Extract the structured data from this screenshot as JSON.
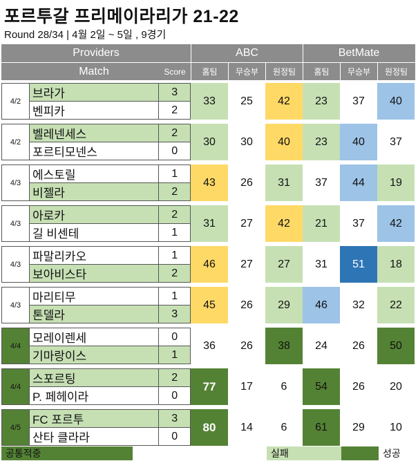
{
  "title": "포르투갈 프리메이라리가 21-22",
  "subtitle": "Round 28/34 | 4월 2일 ~ 5일 , 9경기",
  "header": {
    "providers": "Providers",
    "abc": "ABC",
    "betmate": "BetMate",
    "match": "Match",
    "score": "Score",
    "cols": [
      "홈팀",
      "무승부",
      "원정팀",
      "홈팀",
      "무승부",
      "원정팀"
    ]
  },
  "colors": {
    "header_gray": "#8c8c8c",
    "light_green": "#c6e0b4",
    "dark_green": "#548235",
    "yellow": "#ffd966",
    "light_blue": "#9dc3e6",
    "dark_blue": "#2e75b6",
    "white": "#ffffff"
  },
  "matches": [
    {
      "date": "4/2",
      "date_bg": "white",
      "home": {
        "name": "브라가",
        "score": "3",
        "bg": "light_green"
      },
      "away": {
        "name": "벤피카",
        "score": "2",
        "bg": "white"
      },
      "preds": [
        {
          "v": "33",
          "bg": "light_green"
        },
        {
          "v": "25",
          "bg": "white"
        },
        {
          "v": "42",
          "bg": "yellow"
        },
        {
          "v": "23",
          "bg": "light_green"
        },
        {
          "v": "37",
          "bg": "white"
        },
        {
          "v": "40",
          "bg": "light_blue"
        }
      ]
    },
    {
      "date": "4/2",
      "date_bg": "white",
      "home": {
        "name": "벨레넨세스",
        "score": "2",
        "bg": "light_green"
      },
      "away": {
        "name": "포르티모넨스",
        "score": "0",
        "bg": "white"
      },
      "preds": [
        {
          "v": "30",
          "bg": "light_green"
        },
        {
          "v": "30",
          "bg": "white"
        },
        {
          "v": "40",
          "bg": "yellow"
        },
        {
          "v": "23",
          "bg": "light_green"
        },
        {
          "v": "40",
          "bg": "light_blue"
        },
        {
          "v": "37",
          "bg": "white"
        }
      ]
    },
    {
      "date": "4/3",
      "date_bg": "white",
      "home": {
        "name": "에스토릴",
        "score": "1",
        "bg": "white"
      },
      "away": {
        "name": "비젤라",
        "score": "2",
        "bg": "light_green"
      },
      "preds": [
        {
          "v": "43",
          "bg": "yellow"
        },
        {
          "v": "26",
          "bg": "white"
        },
        {
          "v": "31",
          "bg": "light_green"
        },
        {
          "v": "37",
          "bg": "white"
        },
        {
          "v": "44",
          "bg": "light_blue"
        },
        {
          "v": "19",
          "bg": "light_green"
        }
      ]
    },
    {
      "date": "4/3",
      "date_bg": "white",
      "home": {
        "name": "아로카",
        "score": "2",
        "bg": "light_green"
      },
      "away": {
        "name": "길 비센테",
        "score": "1",
        "bg": "white"
      },
      "preds": [
        {
          "v": "31",
          "bg": "light_green"
        },
        {
          "v": "27",
          "bg": "white"
        },
        {
          "v": "42",
          "bg": "yellow"
        },
        {
          "v": "21",
          "bg": "light_green"
        },
        {
          "v": "37",
          "bg": "white"
        },
        {
          "v": "42",
          "bg": "light_blue"
        }
      ]
    },
    {
      "date": "4/3",
      "date_bg": "white",
      "home": {
        "name": "파말리카오",
        "score": "1",
        "bg": "white"
      },
      "away": {
        "name": "보아비스타",
        "score": "2",
        "bg": "light_green"
      },
      "preds": [
        {
          "v": "46",
          "bg": "yellow"
        },
        {
          "v": "27",
          "bg": "white"
        },
        {
          "v": "27",
          "bg": "light_green"
        },
        {
          "v": "31",
          "bg": "white"
        },
        {
          "v": "51",
          "bg": "dark_blue"
        },
        {
          "v": "18",
          "bg": "light_green"
        }
      ]
    },
    {
      "date": "4/3",
      "date_bg": "white",
      "home": {
        "name": "마리티무",
        "score": "1",
        "bg": "white"
      },
      "away": {
        "name": "톤델라",
        "score": "3",
        "bg": "light_green"
      },
      "preds": [
        {
          "v": "45",
          "bg": "yellow"
        },
        {
          "v": "26",
          "bg": "white"
        },
        {
          "v": "29",
          "bg": "light_green"
        },
        {
          "v": "46",
          "bg": "light_blue"
        },
        {
          "v": "32",
          "bg": "white"
        },
        {
          "v": "22",
          "bg": "light_green"
        }
      ]
    },
    {
      "date": "4/4",
      "date_bg": "dark_green",
      "home": {
        "name": "모레이렌세",
        "score": "0",
        "bg": "white"
      },
      "away": {
        "name": "기마랑이스",
        "score": "1",
        "bg": "light_green"
      },
      "preds": [
        {
          "v": "36",
          "bg": "white"
        },
        {
          "v": "26",
          "bg": "white"
        },
        {
          "v": "38",
          "bg": "dark_green"
        },
        {
          "v": "24",
          "bg": "white"
        },
        {
          "v": "26",
          "bg": "white"
        },
        {
          "v": "50",
          "bg": "dark_green"
        }
      ]
    },
    {
      "date": "4/4",
      "date_bg": "dark_green",
      "home": {
        "name": "스포르팅",
        "score": "2",
        "bg": "light_green"
      },
      "away": {
        "name": "P. 페헤이라",
        "score": "0",
        "bg": "white"
      },
      "preds": [
        {
          "v": "77",
          "bg": "dark_green",
          "bold": true
        },
        {
          "v": "17",
          "bg": "white"
        },
        {
          "v": "6",
          "bg": "white"
        },
        {
          "v": "54",
          "bg": "dark_green"
        },
        {
          "v": "26",
          "bg": "white"
        },
        {
          "v": "20",
          "bg": "white"
        }
      ]
    },
    {
      "date": "4/5",
      "date_bg": "dark_green",
      "home": {
        "name": "FC 포르투",
        "score": "3",
        "bg": "light_green"
      },
      "away": {
        "name": "산타 클라라",
        "score": "0",
        "bg": "white"
      },
      "preds": [
        {
          "v": "80",
          "bg": "dark_green",
          "bold": true
        },
        {
          "v": "14",
          "bg": "white"
        },
        {
          "v": "6",
          "bg": "white"
        },
        {
          "v": "61",
          "bg": "dark_green"
        },
        {
          "v": "29",
          "bg": "white"
        },
        {
          "v": "10",
          "bg": "white"
        }
      ]
    }
  ],
  "legend": {
    "common": "공통적중",
    "fail": "실패",
    "success": "성공"
  }
}
